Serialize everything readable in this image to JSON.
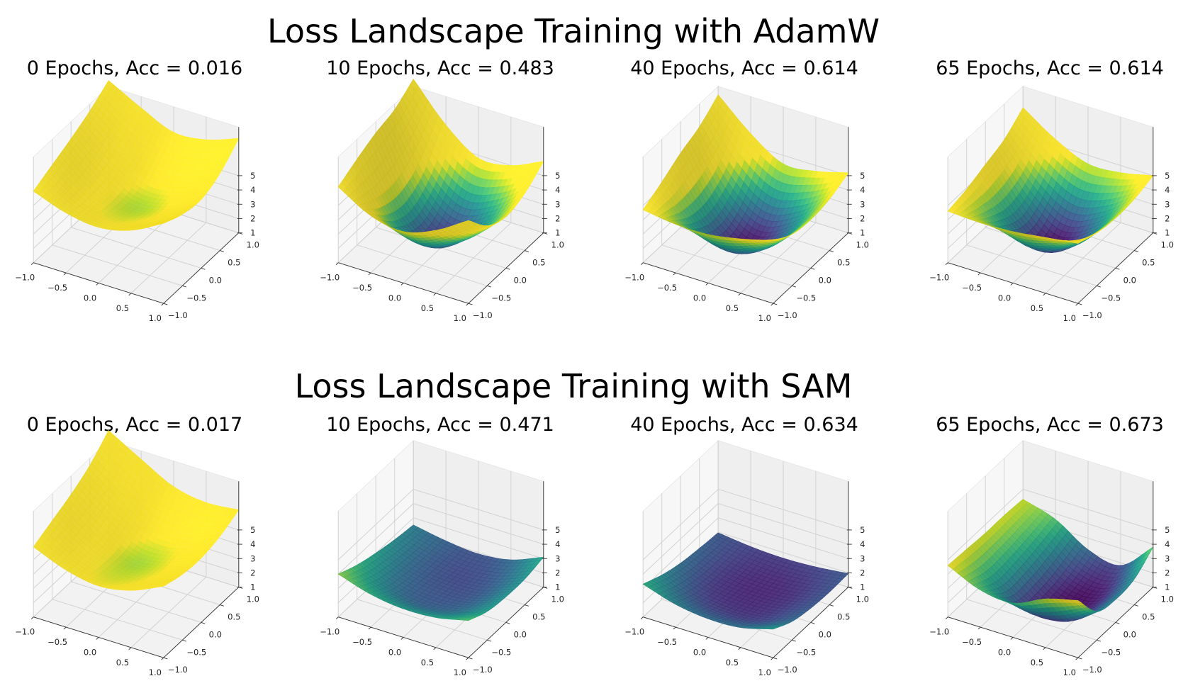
{
  "figure": {
    "row_titles": [
      "Loss Landscape Training with AdamW",
      "Loss Landscape Training with SAM"
    ]
  },
  "axes_common": {
    "x_tick_labels": [
      "−1.0",
      "−0.5",
      "0.0",
      "0.5",
      "1.0"
    ],
    "y_tick_labels": [
      "−1.0",
      "−0.5",
      "0.0",
      "0.5",
      "1.0"
    ],
    "z_tick_labels": [
      "1",
      "2",
      "3",
      "4",
      "5"
    ]
  },
  "chart_data": [
    {
      "type": "surface",
      "optimizer": "AdamW",
      "epochs": 0,
      "accuracy": 0.016,
      "title": "0 Epochs, Acc = 0.016",
      "x": [
        -1,
        -0.5,
        0,
        0.5,
        1
      ],
      "y": [
        -1,
        -0.5,
        0,
        0.5,
        1
      ],
      "xlim": [
        -1,
        1
      ],
      "ylim": [
        -1,
        1
      ],
      "zlim": [
        1,
        8.4
      ],
      "zticks": [
        1,
        2,
        3,
        4,
        5
      ],
      "colormap": "viridis",
      "color_range": [
        1,
        4.6
      ],
      "grid": true,
      "z": [
        [
          6.0,
          5.2,
          4.9,
          5.4,
          6.6
        ],
        [
          6.6,
          5.0,
          4.4,
          4.8,
          6.0
        ],
        [
          7.2,
          5.3,
          4.2,
          4.6,
          5.8
        ],
        [
          7.9,
          6.2,
          5.0,
          5.2,
          6.4
        ],
        [
          8.8,
          7.6,
          6.6,
          6.8,
          7.6
        ]
      ]
    },
    {
      "type": "surface",
      "optimizer": "AdamW",
      "epochs": 10,
      "accuracy": 0.483,
      "title": "10 Epochs, Acc = 0.483",
      "x": [
        -1,
        -0.5,
        0,
        0.5,
        1
      ],
      "y": [
        -1,
        -0.5,
        0,
        0.5,
        1
      ],
      "xlim": [
        -1,
        1
      ],
      "ylim": [
        -1,
        1
      ],
      "zlim": [
        1,
        8.4
      ],
      "zticks": [
        1,
        2,
        3,
        4,
        5
      ],
      "colormap": "viridis",
      "color_range": [
        1,
        4.6
      ],
      "grid": true,
      "z": [
        [
          6.3,
          5.0,
          4.6,
          5.4,
          6.8
        ],
        [
          7.0,
          3.6,
          2.4,
          3.4,
          5.2
        ],
        [
          7.6,
          3.2,
          1.4,
          2.6,
          4.6
        ],
        [
          8.0,
          4.2,
          2.4,
          3.2,
          5.0
        ],
        [
          8.9,
          6.4,
          4.8,
          5.0,
          6.0
        ]
      ]
    },
    {
      "type": "surface",
      "optimizer": "AdamW",
      "epochs": 40,
      "accuracy": 0.614,
      "title": "40 Epochs, Acc = 0.614",
      "x": [
        -1,
        -0.5,
        0,
        0.5,
        1
      ],
      "y": [
        -1,
        -0.5,
        0,
        0.5,
        1
      ],
      "xlim": [
        -1,
        1
      ],
      "ylim": [
        -1,
        1
      ],
      "zlim": [
        1,
        8.4
      ],
      "zticks": [
        1,
        2,
        3,
        4,
        5
      ],
      "colormap": "viridis",
      "color_range": [
        1,
        4.6
      ],
      "grid": true,
      "z": [
        [
          4.7,
          4.4,
          4.4,
          4.8,
          5.4
        ],
        [
          5.4,
          3.0,
          2.0,
          2.8,
          4.6
        ],
        [
          6.2,
          2.6,
          1.1,
          2.2,
          4.4
        ],
        [
          6.8,
          3.6,
          2.0,
          2.8,
          4.6
        ],
        [
          7.8,
          5.8,
          4.4,
          4.6,
          5.2
        ]
      ]
    },
    {
      "type": "surface",
      "optimizer": "AdamW",
      "epochs": 65,
      "accuracy": 0.614,
      "title": "65 Epochs, Acc = 0.614",
      "x": [
        -1,
        -0.5,
        0,
        0.5,
        1
      ],
      "y": [
        -1,
        -0.5,
        0,
        0.5,
        1
      ],
      "xlim": [
        -1,
        1
      ],
      "ylim": [
        -1,
        1
      ],
      "zlim": [
        1,
        8.4
      ],
      "zticks": [
        1,
        2,
        3,
        4,
        5
      ],
      "colormap": "viridis",
      "color_range": [
        1,
        4.6
      ],
      "grid": true,
      "z": [
        [
          4.6,
          4.5,
          4.6,
          4.9,
          5.2
        ],
        [
          4.9,
          3.2,
          2.2,
          3.0,
          4.7
        ],
        [
          5.4,
          2.6,
          1.0,
          2.2,
          4.5
        ],
        [
          5.9,
          3.4,
          2.0,
          2.8,
          4.6
        ],
        [
          6.9,
          5.4,
          4.4,
          4.5,
          5.0
        ]
      ]
    },
    {
      "type": "surface",
      "optimizer": "SAM",
      "epochs": 0,
      "accuracy": 0.017,
      "title": "0 Epochs, Acc = 0.017",
      "x": [
        -1,
        -0.5,
        0,
        0.5,
        1
      ],
      "y": [
        -1,
        -0.5,
        0,
        0.5,
        1
      ],
      "xlim": [
        -1,
        1
      ],
      "ylim": [
        -1,
        1
      ],
      "zlim": [
        1,
        8.4
      ],
      "zticks": [
        1,
        2,
        3,
        4,
        5
      ],
      "colormap": "viridis",
      "color_range": [
        1,
        4.6
      ],
      "grid": true,
      "z": [
        [
          5.9,
          5.0,
          4.6,
          5.0,
          6.0
        ],
        [
          6.5,
          5.0,
          4.3,
          4.6,
          5.6
        ],
        [
          7.1,
          5.4,
          4.2,
          4.5,
          5.5
        ],
        [
          7.9,
          6.3,
          5.0,
          4.9,
          5.8
        ],
        [
          9.1,
          7.8,
          6.6,
          6.2,
          6.4
        ]
      ]
    },
    {
      "type": "surface",
      "optimizer": "SAM",
      "epochs": 10,
      "accuracy": 0.471,
      "title": "10 Epochs, Acc = 0.471",
      "x": [
        -1,
        -0.5,
        0,
        0.5,
        1
      ],
      "y": [
        -1,
        -0.5,
        0,
        0.5,
        1
      ],
      "xlim": [
        -1,
        1
      ],
      "ylim": [
        -1,
        1
      ],
      "zlim": [
        1,
        8.4
      ],
      "zticks": [
        1,
        2,
        3,
        4,
        5
      ],
      "colormap": "viridis",
      "color_range": [
        1,
        4.6
      ],
      "grid": true,
      "z": [
        [
          4.0,
          3.3,
          3.0,
          3.1,
          3.6
        ],
        [
          3.4,
          2.5,
          2.1,
          2.3,
          3.0
        ],
        [
          3.0,
          2.2,
          1.9,
          2.0,
          2.8
        ],
        [
          2.7,
          2.1,
          1.8,
          2.0,
          2.8
        ],
        [
          2.5,
          2.1,
          1.9,
          2.2,
          3.1
        ]
      ]
    },
    {
      "type": "surface",
      "optimizer": "SAM",
      "epochs": 40,
      "accuracy": 0.634,
      "title": "40 Epochs, Acc = 0.634",
      "x": [
        -1,
        -0.5,
        0,
        0.5,
        1
      ],
      "y": [
        -1,
        -0.5,
        0,
        0.5,
        1
      ],
      "xlim": [
        -1,
        1
      ],
      "ylim": [
        -1,
        1
      ],
      "zlim": [
        1,
        8.4
      ],
      "zticks": [
        1,
        2,
        3,
        4,
        5
      ],
      "colormap": "viridis",
      "color_range": [
        1,
        4.6
      ],
      "grid": true,
      "z": [
        [
          3.3,
          2.6,
          2.3,
          2.4,
          3.0
        ],
        [
          2.7,
          1.9,
          1.6,
          1.7,
          2.3
        ],
        [
          2.3,
          1.6,
          1.4,
          1.5,
          2.0
        ],
        [
          2.1,
          1.6,
          1.4,
          1.5,
          1.9
        ],
        [
          1.95,
          1.7,
          1.6,
          1.7,
          1.95
        ]
      ]
    },
    {
      "type": "surface",
      "optimizer": "SAM",
      "epochs": 65,
      "accuracy": 0.673,
      "title": "65 Epochs, Acc = 0.673",
      "x": [
        -1,
        -0.5,
        0,
        0.5,
        1
      ],
      "y": [
        -1,
        -0.5,
        0,
        0.5,
        1
      ],
      "xlim": [
        -1,
        1
      ],
      "ylim": [
        -1,
        1
      ],
      "zlim": [
        1,
        8.4
      ],
      "zticks": [
        1,
        2,
        3,
        4,
        5
      ],
      "colormap": "viridis",
      "color_range": [
        1,
        4.6
      ],
      "grid": true,
      "z": [
        [
          4.6,
          3.6,
          3.4,
          4.4,
          5.0
        ],
        [
          4.5,
          2.8,
          1.5,
          1.6,
          3.0
        ],
        [
          4.4,
          2.9,
          1.3,
          1.2,
          2.6
        ],
        [
          4.4,
          3.2,
          1.6,
          1.3,
          2.8
        ],
        [
          4.3,
          3.6,
          2.2,
          1.8,
          3.8
        ]
      ]
    }
  ]
}
